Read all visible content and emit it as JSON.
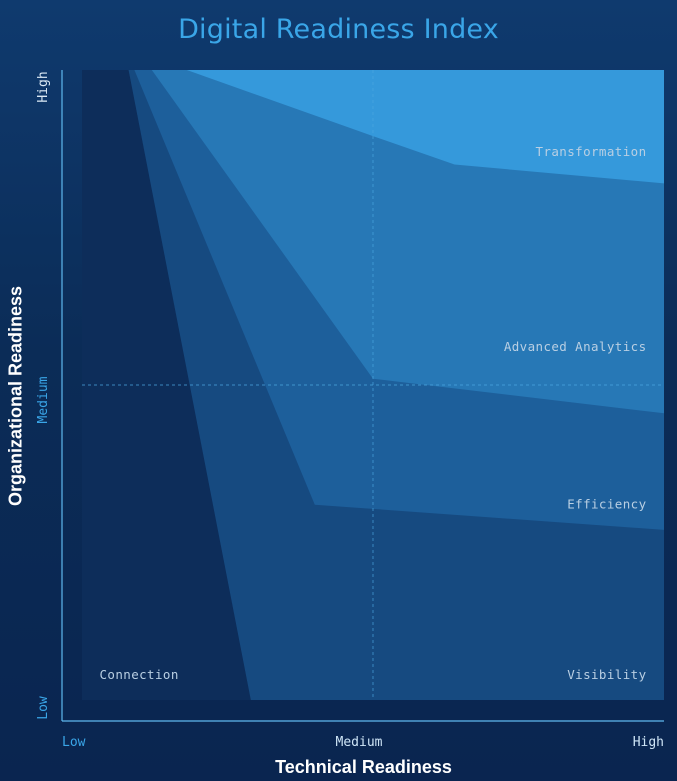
{
  "chart_data": {
    "type": "area",
    "title": "Digital Readiness Index",
    "xlabel": "Technical Readiness",
    "ylabel": "Organizational Readiness",
    "x_ticks": [
      "Low",
      "Medium",
      "High"
    ],
    "y_ticks": [
      "Low",
      "Medium",
      "High"
    ],
    "xlim": [
      0,
      1
    ],
    "ylim": [
      0,
      1
    ],
    "grid": "medium-lines-only",
    "colors": {
      "axis_tick": "#3aa6e8",
      "axis_line": "#5fb8ee",
      "region_text": "#b9cfe3"
    },
    "regions": [
      {
        "name": "Connection",
        "color": "#0d2d5a",
        "label_anchor": "start",
        "label_at": [
          0.03,
          0.04
        ],
        "points": [
          [
            0,
            0
          ],
          [
            0.29,
            0
          ],
          [
            0.08,
            1
          ],
          [
            0,
            1
          ]
        ]
      },
      {
        "name": "Visibility",
        "color": "#164a80",
        "label_anchor": "end",
        "label_at": [
          0.97,
          0.04
        ],
        "points": [
          [
            0.29,
            0
          ],
          [
            1,
            0
          ],
          [
            1,
            1
          ],
          [
            0.08,
            1
          ]
        ]
      },
      {
        "name": "Efficiency",
        "color": "#1d5f9b",
        "label_anchor": "end",
        "label_at": [
          0.97,
          0.31
        ],
        "points": [
          [
            0.4,
            0.31
          ],
          [
            1,
            0.27
          ],
          [
            1,
            1
          ],
          [
            0.09,
            1
          ]
        ]
      },
      {
        "name": "Advanced Analytics",
        "color": "#2778b6",
        "label_anchor": "end",
        "label_at": [
          0.97,
          0.56
        ],
        "points": [
          [
            0.5,
            0.51
          ],
          [
            1,
            0.455
          ],
          [
            1,
            1
          ],
          [
            0.12,
            1
          ]
        ]
      },
      {
        "name": "Transformation",
        "color": "#3599db",
        "label_anchor": "end",
        "label_at": [
          0.97,
          0.87
        ],
        "points": [
          [
            0.5,
            0.895
          ],
          [
            0.64,
            0.85
          ],
          [
            1,
            0.82
          ],
          [
            1,
            1
          ],
          [
            0.18,
            1
          ]
        ]
      }
    ]
  }
}
